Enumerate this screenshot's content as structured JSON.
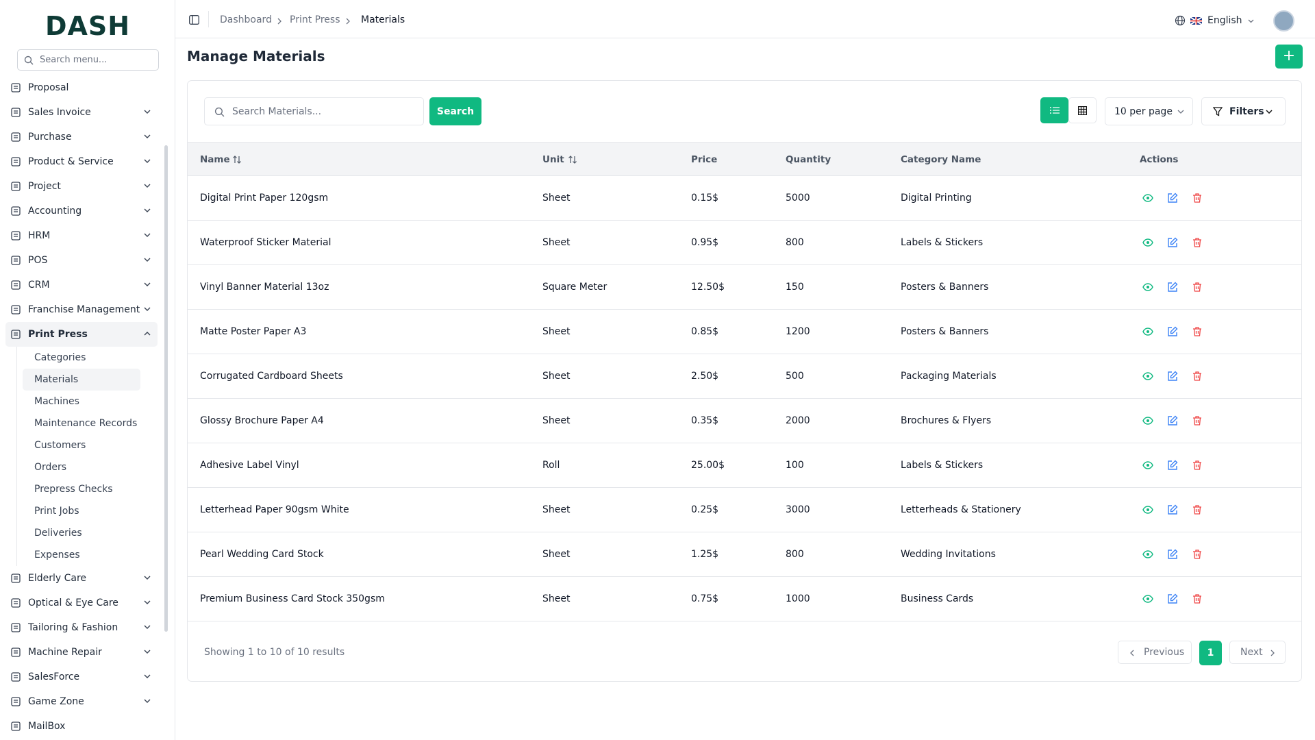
{
  "brand": "DASH",
  "sidebar": {
    "search_placeholder": "Search menu...",
    "items": [
      {
        "label": "Proposal"
      },
      {
        "label": "Sales Invoice",
        "has_submenu": true
      },
      {
        "label": "Purchase",
        "has_submenu": true
      },
      {
        "label": "Product & Service",
        "has_submenu": true
      },
      {
        "label": "Project",
        "has_submenu": true
      },
      {
        "label": "Accounting",
        "has_submenu": true
      },
      {
        "label": "HRM",
        "has_submenu": true
      },
      {
        "label": "POS",
        "has_submenu": true
      },
      {
        "label": "CRM",
        "has_submenu": true
      },
      {
        "label": "Franchise Management",
        "has_submenu": true
      },
      {
        "label": "Print Press",
        "has_submenu": true,
        "open": true,
        "children": [
          {
            "label": "Categories"
          },
          {
            "label": "Materials",
            "active": true
          },
          {
            "label": "Machines"
          },
          {
            "label": "Maintenance Records"
          },
          {
            "label": "Customers"
          },
          {
            "label": "Orders"
          },
          {
            "label": "Prepress Checks"
          },
          {
            "label": "Print Jobs"
          },
          {
            "label": "Deliveries"
          },
          {
            "label": "Expenses"
          }
        ]
      },
      {
        "label": "Elderly Care",
        "has_submenu": true
      },
      {
        "label": "Optical & Eye Care",
        "has_submenu": true
      },
      {
        "label": "Tailoring & Fashion",
        "has_submenu": true
      },
      {
        "label": "Machine Repair",
        "has_submenu": true
      },
      {
        "label": "SalesForce",
        "has_submenu": true
      },
      {
        "label": "Game Zone",
        "has_submenu": true
      },
      {
        "label": "MailBox"
      }
    ]
  },
  "header": {
    "breadcrumb": [
      "Dashboard",
      "Print Press",
      "Materials"
    ],
    "language": "English"
  },
  "page": {
    "title": "Manage Materials",
    "search_placeholder": "Search Materials...",
    "search_button": "Search",
    "per_page": "10 per page",
    "filters": "Filters"
  },
  "table": {
    "columns": [
      "Name",
      "Unit",
      "Price",
      "Quantity",
      "Category Name",
      "Actions"
    ],
    "rows": [
      [
        "Digital Print Paper 120gsm",
        "Sheet",
        "0.15$",
        5000,
        "Digital Printing"
      ],
      [
        "Waterproof Sticker Material",
        "Sheet",
        "0.95$",
        800,
        "Labels & Stickers"
      ],
      [
        "Vinyl Banner Material 13oz",
        "Square Meter",
        "12.50$",
        150,
        "Posters & Banners"
      ],
      [
        "Matte Poster Paper A3",
        "Sheet",
        "0.85$",
        1200,
        "Posters & Banners"
      ],
      [
        "Corrugated Cardboard Sheets",
        "Sheet",
        "2.50$",
        500,
        "Packaging Materials"
      ],
      [
        "Glossy Brochure Paper A4",
        "Sheet",
        "0.35$",
        2000,
        "Brochures & Flyers"
      ],
      [
        "Adhesive Label Vinyl",
        "Roll",
        "25.00$",
        100,
        "Labels & Stickers"
      ],
      [
        "Letterhead Paper 90gsm White",
        "Sheet",
        "0.25$",
        3000,
        "Letterheads & Stationery"
      ],
      [
        "Pearl Wedding Card Stock",
        "Sheet",
        "1.25$",
        800,
        "Wedding Invitations"
      ],
      [
        "Premium Business Card Stock 350gsm",
        "Sheet",
        "0.75$",
        1000,
        "Business Cards"
      ]
    ]
  },
  "pagination": {
    "summary": "Showing 1 to 10 of 10 results",
    "previous": "Previous",
    "current": "1",
    "next": "Next"
  }
}
